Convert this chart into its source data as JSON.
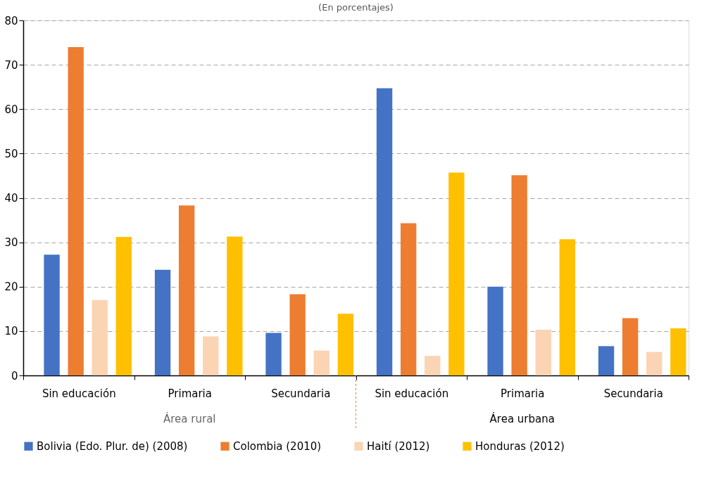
{
  "chart_data": {
    "type": "bar",
    "title": "(En porcentajes)",
    "categories": [
      "Sin educación",
      "Primaria",
      "Secundaria",
      "Sin educación",
      "Primaria",
      "Secundaria"
    ],
    "series": [
      {
        "name": "Bolivia (Edo. Plur. de) (2008)",
        "color": "#4472c4",
        "values": [
          27.2,
          23.8,
          9.6,
          64.7,
          20.0,
          6.6
        ]
      },
      {
        "name": "Colombia (2010)",
        "color": "#ed7d31",
        "values": [
          74.0,
          38.3,
          18.3,
          34.3,
          45.1,
          12.9
        ]
      },
      {
        "name": "Haití (2012)",
        "color": "#fbd4b4",
        "values": [
          17.0,
          8.8,
          5.6,
          4.4,
          10.3,
          5.3
        ]
      },
      {
        "name": "Honduras (2012)",
        "color": "#ffc000",
        "values": [
          31.2,
          31.3,
          13.9,
          45.7,
          30.7,
          10.6
        ]
      }
    ],
    "annotations": [
      "Área rural",
      "Área urbana"
    ],
    "ylim": [
      0,
      80
    ],
    "yticks": [
      0,
      10,
      20,
      30,
      40,
      50,
      60,
      70,
      80
    ],
    "grid": "y",
    "legend": "bottom"
  }
}
